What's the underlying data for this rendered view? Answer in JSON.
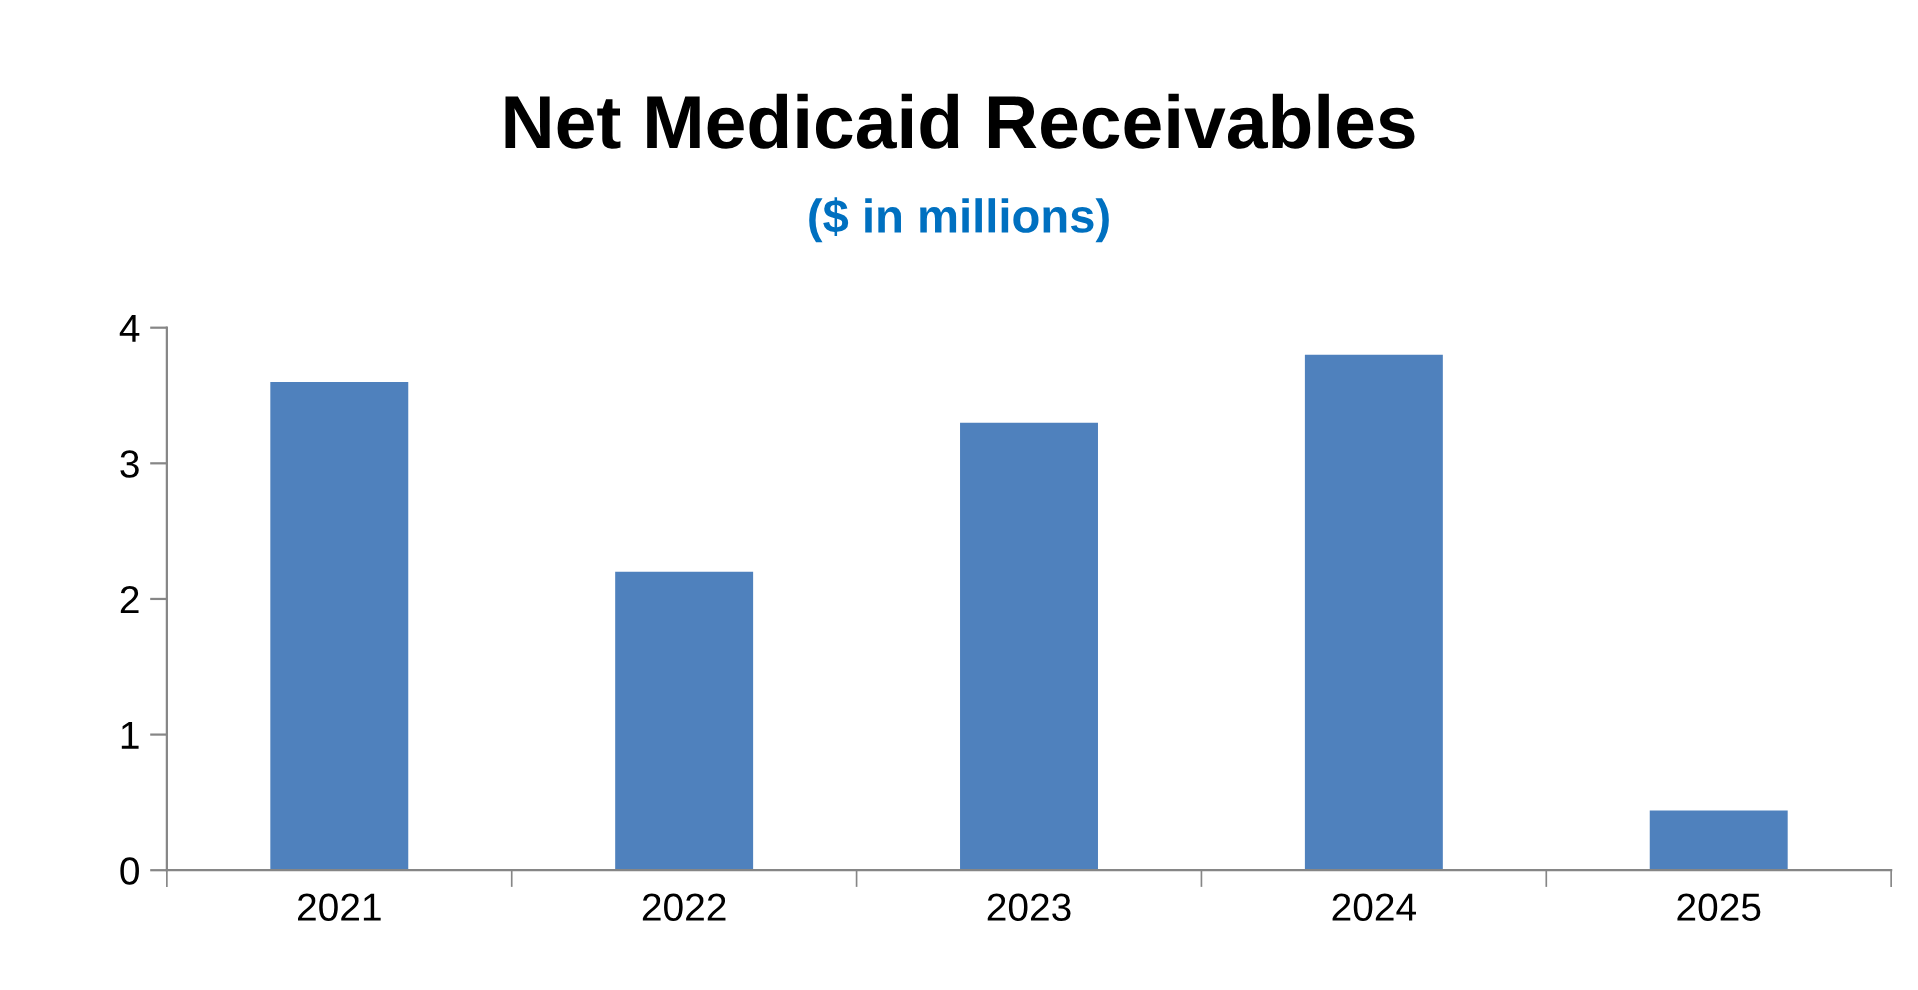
{
  "chart_data": {
    "type": "bar",
    "title": "Net Medicaid Receivables",
    "subtitle": "($ in millions)",
    "categories": [
      "2021",
      "2022",
      "2023",
      "2024",
      "2025"
    ],
    "values": [
      3.6,
      2.2,
      3.3,
      3.8,
      0.44
    ],
    "color": "#4f81bd",
    "ylim": [
      0,
      4
    ],
    "yticks": [
      0,
      1,
      2,
      3,
      4
    ],
    "grid": false,
    "legend": false
  }
}
